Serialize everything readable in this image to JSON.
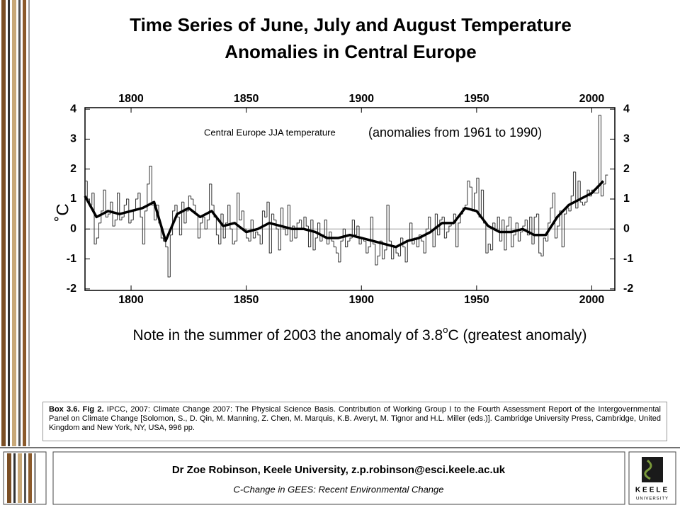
{
  "header": {
    "title_line1": "Time Series of June, July and August Temperature",
    "title_line2": "Anomalies in Central Europe"
  },
  "chart_data": {
    "type": "step",
    "ylabel": "˚C",
    "annotations": [
      "Central Europe JJA temperature",
      "(anomalies from 1961 to 1990)"
    ],
    "xlim": [
      1780,
      2010
    ],
    "xticks": [
      1800,
      1850,
      1900,
      1950,
      2000
    ],
    "ylim": [
      -2.05,
      4.05
    ],
    "yticks": [
      -2,
      -1,
      0,
      1,
      2,
      3,
      4
    ],
    "color": "#333333",
    "series": [
      {
        "x": [
          1780,
          1781,
          1782,
          1783,
          1784,
          1785,
          1786,
          1787,
          1788,
          1789,
          1790,
          1791,
          1792,
          1793,
          1794,
          1795,
          1796,
          1797,
          1798,
          1799,
          1800,
          1801,
          1802,
          1803,
          1804,
          1805,
          1806,
          1807,
          1808,
          1809,
          1810,
          1811,
          1812,
          1813,
          1814,
          1815,
          1816,
          1817,
          1818,
          1819,
          1820,
          1821,
          1822,
          1823,
          1824,
          1825,
          1826,
          1827,
          1828,
          1829,
          1830,
          1831,
          1832,
          1833,
          1834,
          1835,
          1836,
          1837,
          1838,
          1839,
          1840,
          1841,
          1842,
          1843,
          1844,
          1845,
          1846,
          1847,
          1848,
          1849,
          1850,
          1851,
          1852,
          1853,
          1854,
          1855,
          1856,
          1857,
          1858,
          1859,
          1860,
          1861,
          1862,
          1863,
          1864,
          1865,
          1866,
          1867,
          1868,
          1869,
          1870,
          1871,
          1872,
          1873,
          1874,
          1875,
          1876,
          1877,
          1878,
          1879,
          1880,
          1881,
          1882,
          1883,
          1884,
          1885,
          1886,
          1887,
          1888,
          1889,
          1890,
          1891,
          1892,
          1893,
          1894,
          1895,
          1896,
          1897,
          1898,
          1899,
          1900,
          1901,
          1902,
          1903,
          1904,
          1905,
          1906,
          1907,
          1908,
          1909,
          1910,
          1911,
          1912,
          1913,
          1914,
          1915,
          1916,
          1917,
          1918,
          1919,
          1920,
          1921,
          1922,
          1923,
          1924,
          1925,
          1926,
          1927,
          1928,
          1929,
          1930,
          1931,
          1932,
          1933,
          1934,
          1935,
          1936,
          1937,
          1938,
          1939,
          1940,
          1941,
          1942,
          1943,
          1944,
          1945,
          1946,
          1947,
          1948,
          1949,
          1950,
          1951,
          1952,
          1953,
          1954,
          1955,
          1956,
          1957,
          1958,
          1959,
          1960,
          1961,
          1962,
          1963,
          1964,
          1965,
          1966,
          1967,
          1968,
          1969,
          1970,
          1971,
          1972,
          1973,
          1974,
          1975,
          1976,
          1977,
          1978,
          1979,
          1980,
          1981,
          1982,
          1983,
          1984,
          1985,
          1986,
          1987,
          1988,
          1989,
          1990,
          1991,
          1992,
          1993,
          1994,
          1995,
          1996,
          1997,
          1998,
          1999,
          2000,
          2001,
          2002,
          2003,
          2004,
          2005,
          2006
        ],
        "values": [
          1.6,
          1.0,
          0.8,
          1.2,
          -0.5,
          -0.3,
          0.2,
          0.6,
          1.3,
          0.4,
          0.5,
          0.9,
          0.1,
          0.3,
          1.2,
          0.3,
          0.4,
          0.8,
          1.0,
          0.2,
          0.3,
          0.6,
          1.0,
          1.2,
          0.4,
          -0.5,
          0.6,
          1.5,
          2.1,
          0.8,
          0.3,
          0.8,
          0.2,
          -0.3,
          -0.4,
          -0.6,
          -1.6,
          -0.2,
          0.6,
          0.8,
          0.4,
          -0.2,
          0.9,
          0.2,
          0.6,
          1.1,
          1.0,
          0.8,
          0.5,
          -0.3,
          0.2,
          0.4,
          0.0,
          0.3,
          1.5,
          0.8,
          0.4,
          -0.2,
          -0.5,
          0.5,
          -0.3,
          0.2,
          0.8,
          0.0,
          -0.5,
          -0.4,
          1.2,
          0.3,
          0.6,
          0.0,
          -0.3,
          -0.4,
          0.3,
          -0.3,
          -0.1,
          -0.2,
          -0.5,
          0.6,
          0.4,
          0.9,
          -0.8,
          0.5,
          0.3,
          0.0,
          -0.7,
          0.7,
          0.0,
          -0.2,
          0.8,
          -0.4,
          0.1,
          -0.3,
          0.2,
          0.3,
          0.0,
          0.4,
          0.1,
          -0.6,
          0.3,
          -0.7,
          -0.3,
          0.2,
          -0.4,
          -0.2,
          0.3,
          -0.5,
          -0.1,
          -0.4,
          -0.6,
          -0.8,
          -1.1,
          -0.4,
          0.0,
          -0.6,
          -0.4,
          -0.3,
          0.3,
          -0.2,
          0.1,
          -0.5,
          -0.3,
          -0.4,
          -0.8,
          -0.6,
          0.4,
          -0.5,
          -1.2,
          -0.9,
          -0.4,
          -1.0,
          -0.7,
          0.8,
          -0.4,
          -1.0,
          -0.6,
          -0.8,
          -0.9,
          -0.3,
          -0.6,
          -1.1,
          -0.4,
          0.2,
          -0.5,
          -0.3,
          -0.6,
          -0.2,
          -0.4,
          -0.8,
          0.0,
          0.4,
          -0.1,
          -0.6,
          0.5,
          -0.2,
          0.3,
          0.4,
          -0.3,
          -0.1,
          0.1,
          0.2,
          0.5,
          -0.6,
          0.2,
          0.5,
          0.7,
          0.8,
          1.6,
          1.4,
          0.6,
          1.2,
          1.7,
          0.4,
          1.3,
          0.2,
          -0.8,
          -0.5,
          -0.7,
          0.2,
          0.0,
          0.4,
          -0.4,
          0.3,
          -0.7,
          0.1,
          0.4,
          -0.6,
          -0.2,
          0.2,
          -0.4,
          -0.1,
          0.1,
          0.3,
          -0.2,
          0.4,
          -0.5,
          0.4,
          0.5,
          -0.8,
          -0.9,
          -0.3,
          -0.4,
          0.2,
          0.7,
          1.2,
          -0.3,
          0.1,
          0.6,
          -0.6,
          0.5,
          0.7,
          0.6,
          1.1,
          1.9,
          0.7,
          1.6,
          0.9,
          0.8,
          0.9,
          1.3,
          1.1,
          1.3,
          1.2,
          1.2,
          3.8,
          1.1,
          1.5,
          1.8
        ]
      },
      {
        "x": [
          1780,
          1785,
          1790,
          1795,
          1800,
          1805,
          1810,
          1815,
          1820,
          1825,
          1830,
          1835,
          1840,
          1845,
          1850,
          1855,
          1860,
          1865,
          1870,
          1875,
          1880,
          1885,
          1890,
          1895,
          1900,
          1905,
          1910,
          1915,
          1920,
          1925,
          1930,
          1935,
          1940,
          1945,
          1950,
          1955,
          1960,
          1965,
          1970,
          1975,
          1980,
          1985,
          1990,
          1995,
          2000,
          2005
        ],
        "values": [
          1.1,
          0.4,
          0.6,
          0.5,
          0.6,
          0.7,
          0.9,
          -0.4,
          0.5,
          0.7,
          0.4,
          0.6,
          0.1,
          0.2,
          -0.1,
          0.0,
          0.2,
          0.1,
          0.0,
          0.0,
          -0.1,
          -0.3,
          -0.3,
          -0.2,
          -0.3,
          -0.4,
          -0.5,
          -0.6,
          -0.4,
          -0.3,
          -0.1,
          0.2,
          0.2,
          0.7,
          0.6,
          0.1,
          -0.1,
          -0.1,
          0.0,
          -0.2,
          -0.2,
          0.4,
          0.8,
          1.0,
          1.2,
          1.6
        ],
        "color": "#000000"
      }
    ]
  },
  "note": {
    "before": "Note in the summer of 2003 the anomaly of 3.8",
    "sup": "o",
    "after": "C (greatest anomaly)"
  },
  "citation": {
    "label": "Box 3.6. Fig 2.",
    "text": "IPCC, 2007: Climate Change 2007: The Physical Science Basis. Contribution of Working Group I to the Fourth Assessment Report of the Intergovernmental Panel on Climate Change [Solomon, S., D. Qin, M. Manning, Z. Chen, M. Marquis, K.B. Averyt, M. Tignor and H.L. Miller (eds.)]. Cambridge University Press, Cambridge, United Kingdom and New York, NY, USA, 996 pp."
  },
  "footer": {
    "author": "Dr Zoe Robinson, Keele University, z.p.robinson@esci.keele.ac.uk",
    "course": "C-Change in GEES: Recent Environmental Change",
    "logo_line1": "KEELE",
    "logo_line2": "UNIVERSITY"
  }
}
